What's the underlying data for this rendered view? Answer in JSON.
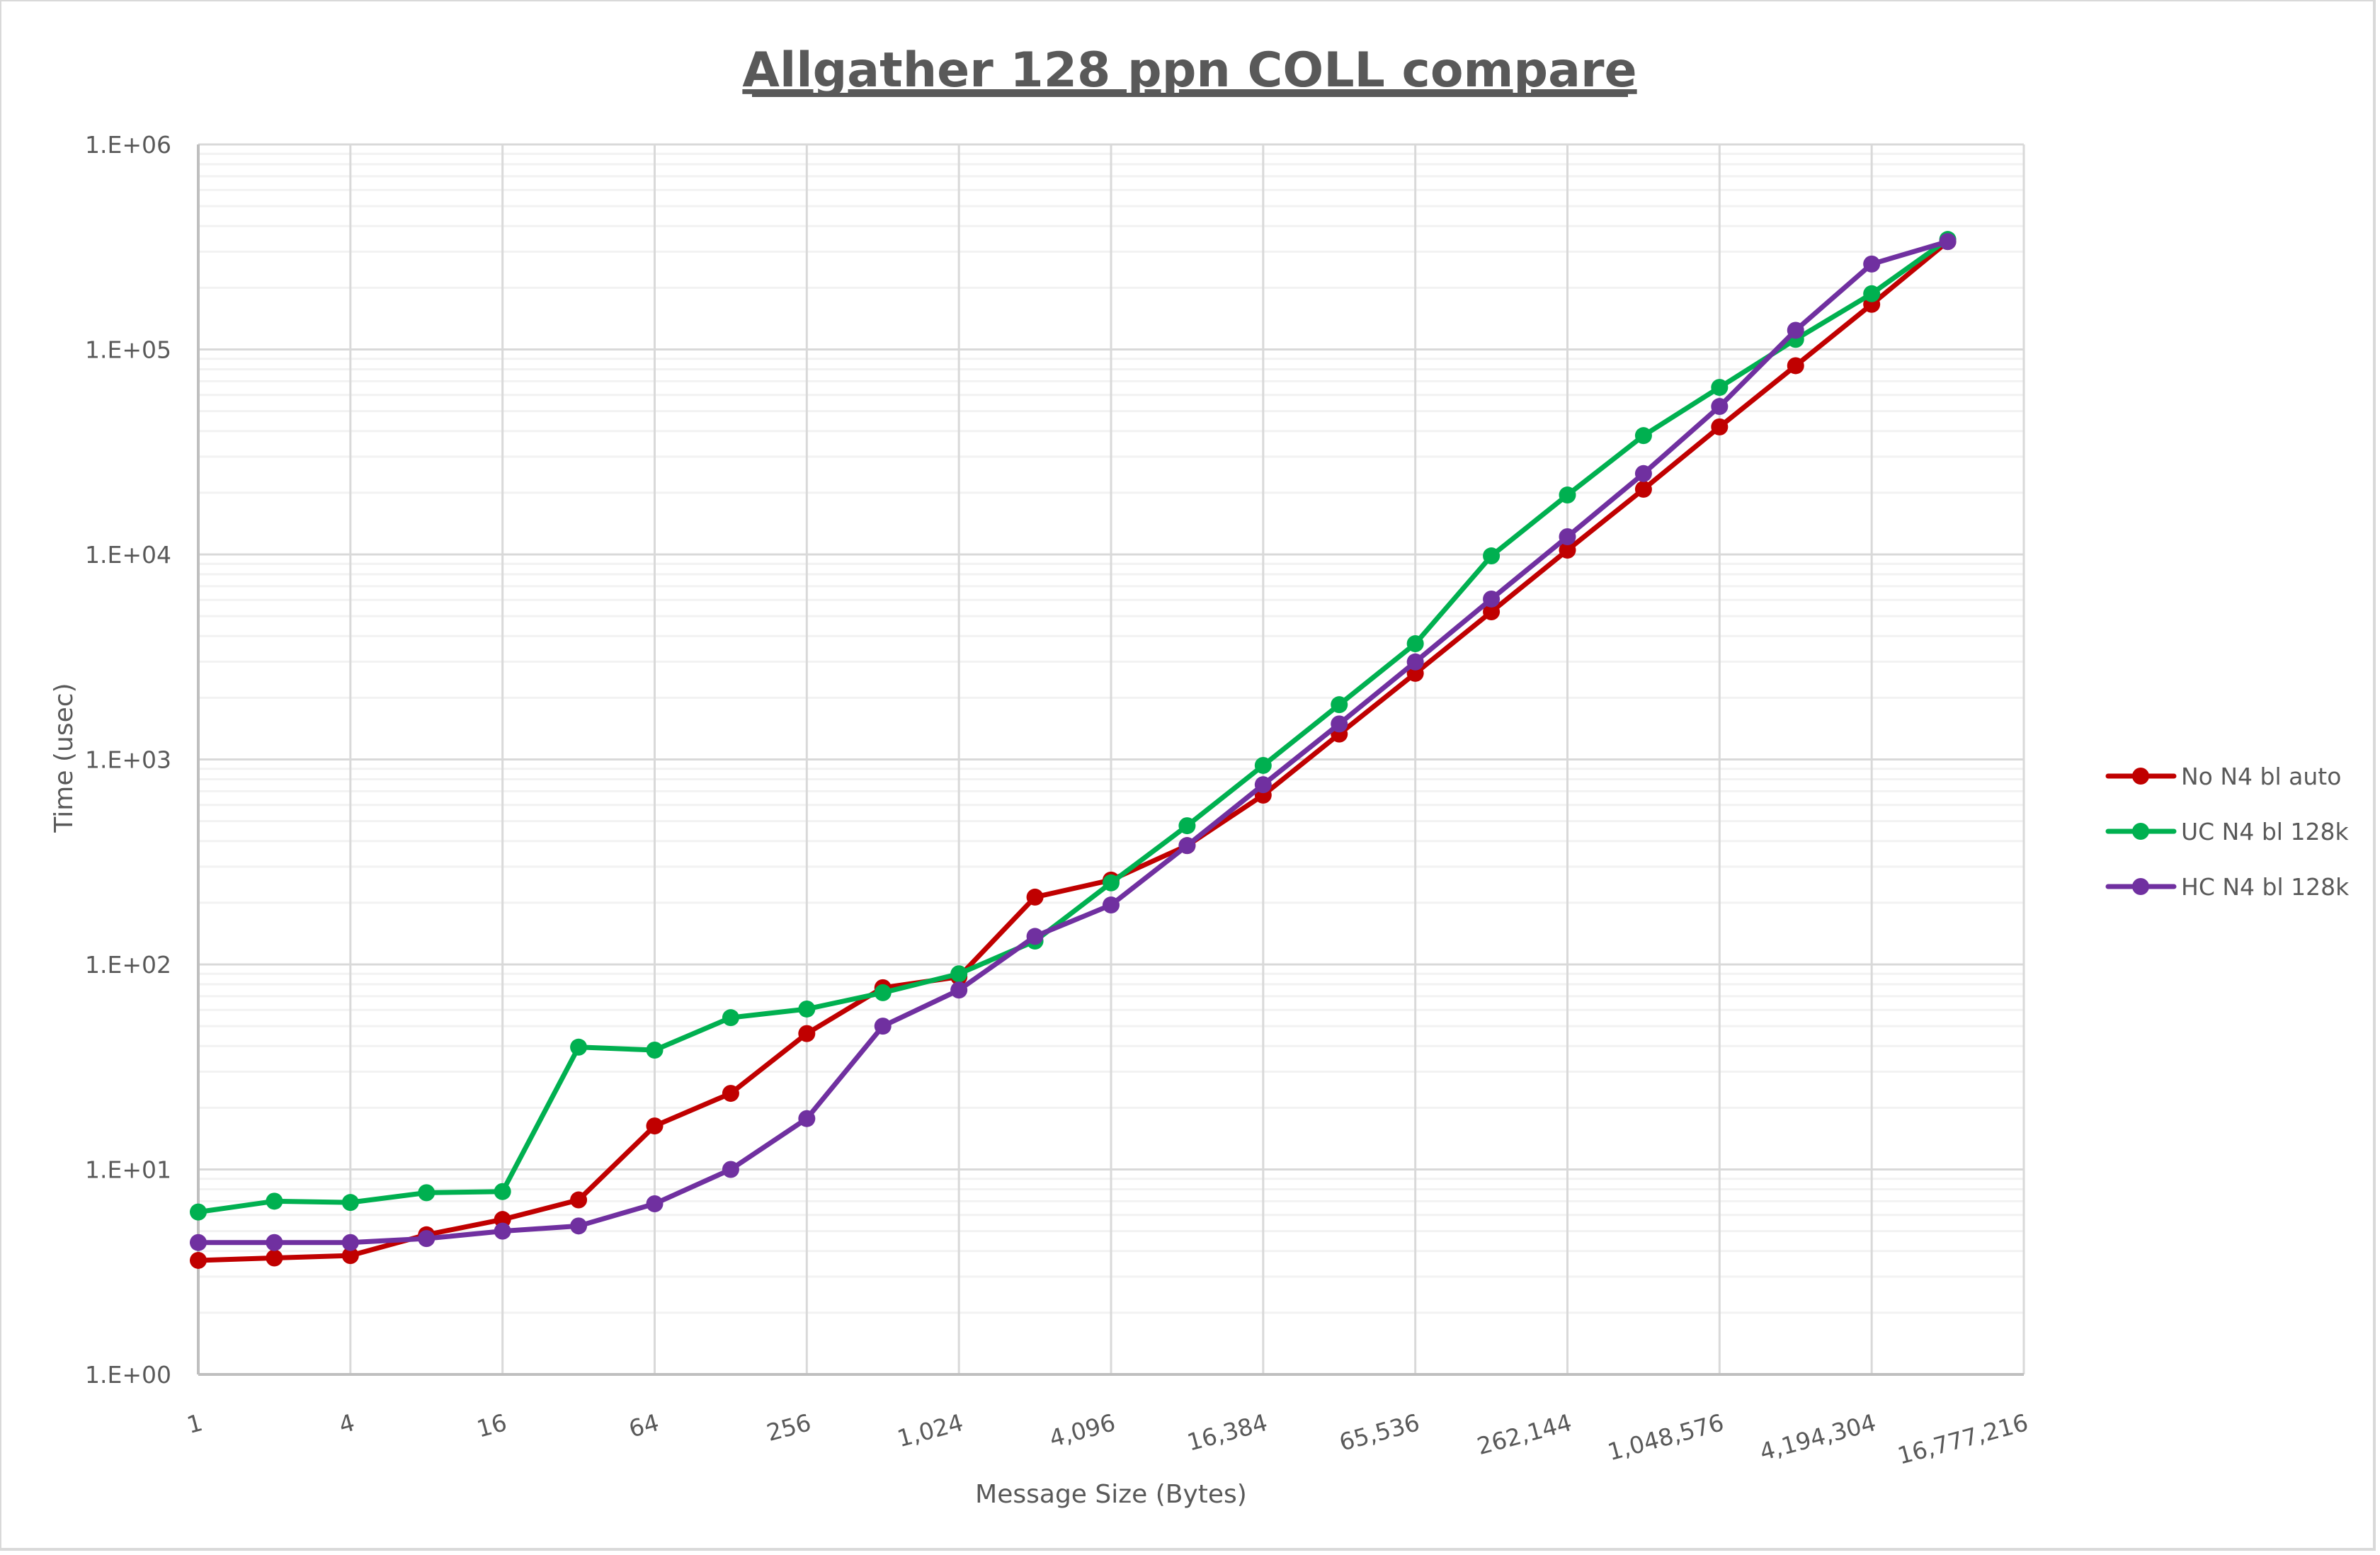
{
  "chart_data": {
    "type": "line",
    "title": "Allgather 128 ppn COLL compare",
    "xlabel": "Message Size (Bytes)",
    "ylabel": "Time (usec)",
    "xscale": "log2",
    "yscale": "log10",
    "ylim": [
      1,
      1000000
    ],
    "y_ticks": [
      "1.E+00",
      "1.E+01",
      "1.E+02",
      "1.E+03",
      "1.E+04",
      "1.E+05",
      "1.E+06"
    ],
    "x_tick_labels": [
      "1",
      "4",
      "16",
      "64",
      "256",
      "1,024",
      "4,096",
      "16,384",
      "65,536",
      "262,144",
      "1,048,576",
      "4,194,304",
      "16,777,216"
    ],
    "xlim": [
      1,
      16777216
    ],
    "grid": true,
    "legend_position": "right",
    "x": [
      1,
      2,
      4,
      8,
      16,
      32,
      64,
      128,
      256,
      512,
      1024,
      2048,
      4096,
      8192,
      16384,
      32768,
      65536,
      131072,
      262144,
      524288,
      1048576,
      2097152,
      4194304,
      8388608
    ],
    "series": [
      {
        "name": "No N4 bl auto",
        "color": "#C00000",
        "values": [
          3.6,
          3.7,
          3.8,
          4.8,
          5.7,
          7.1,
          16.3,
          23.5,
          46,
          77,
          87,
          213,
          258,
          380,
          670,
          1330,
          2630,
          5250,
          10500,
          20800,
          41900,
          83300,
          166000,
          336000
        ]
      },
      {
        "name": "UC N4 bl 128k",
        "color": "#00B050",
        "values": [
          6.2,
          7.0,
          6.9,
          7.7,
          7.8,
          39.5,
          38.2,
          55,
          60.6,
          72.8,
          90,
          130,
          250,
          475,
          935,
          1850,
          3670,
          9840,
          19500,
          38000,
          65300,
          112000,
          187000,
          344000
        ]
      },
      {
        "name": "HC N4 bl 128k",
        "color": "#7030A0",
        "values": [
          4.4,
          4.4,
          4.4,
          4.6,
          5.0,
          5.3,
          6.8,
          10.0,
          17.7,
          50,
          75,
          137,
          195,
          380,
          753,
          1490,
          2990,
          6060,
          12200,
          24800,
          52700,
          124000,
          261000,
          336000
        ]
      }
    ]
  },
  "colors": {
    "text": "#595959",
    "major_grid": "#D9D9D9",
    "minor_grid": "#F2F2F2",
    "border": "#D9D9D9"
  }
}
